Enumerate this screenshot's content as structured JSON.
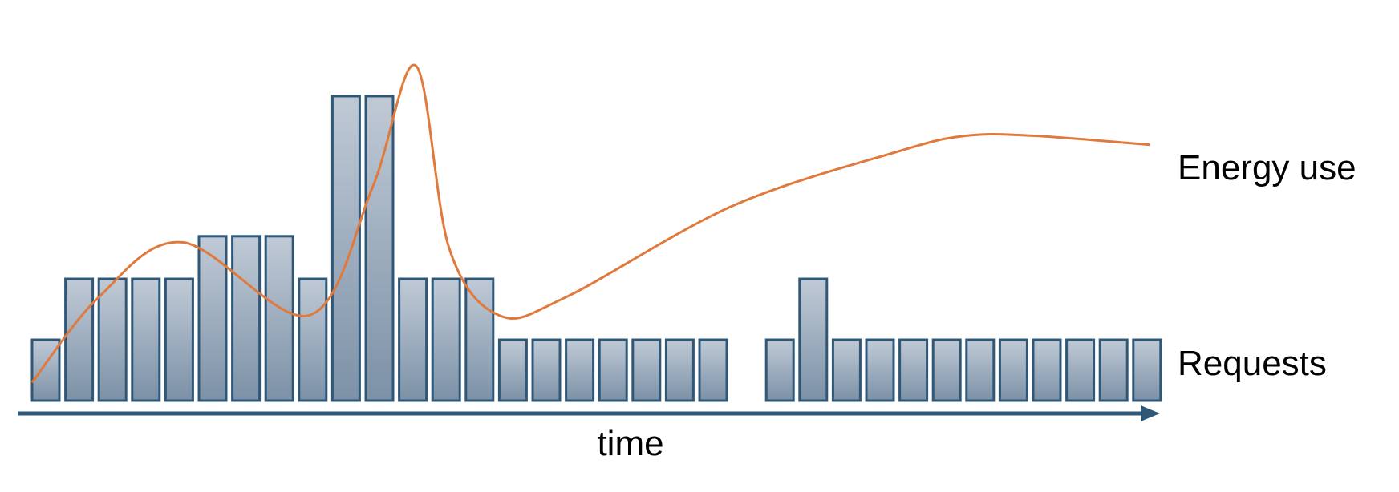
{
  "chart_data": {
    "type": "bar",
    "title": "",
    "xlabel": "time",
    "ylabel": "",
    "grid": false,
    "colors": {
      "bar_fill_top": "#c0cad6",
      "bar_fill_bottom": "#7c91a7",
      "bar_stroke": "#2f5878",
      "axis": "#2f5878",
      "line": "#e07a3c"
    },
    "series": [
      {
        "name": "Requests",
        "type": "bar",
        "values": [
          1,
          2,
          2,
          2,
          2,
          2.7,
          2.7,
          2.7,
          2,
          5,
          5,
          2,
          2,
          2,
          1,
          1,
          1,
          1,
          1,
          1,
          1,
          null,
          1,
          2,
          1,
          1,
          1,
          1,
          1,
          1,
          1,
          1,
          1,
          1
        ]
      },
      {
        "name": "Energy use",
        "type": "line",
        "x": [
          0,
          2,
          4.5,
          8.3,
          10.2,
          11.5,
          12.5,
          14,
          16,
          21,
          26,
          28,
          30,
          33.5
        ],
        "y": [
          0.3,
          1.7,
          2.6,
          1.4,
          3.5,
          5.5,
          2.5,
          1.4,
          1.7,
          3.2,
          4.1,
          4.35,
          4.35,
          4.2
        ]
      }
    ]
  }
}
